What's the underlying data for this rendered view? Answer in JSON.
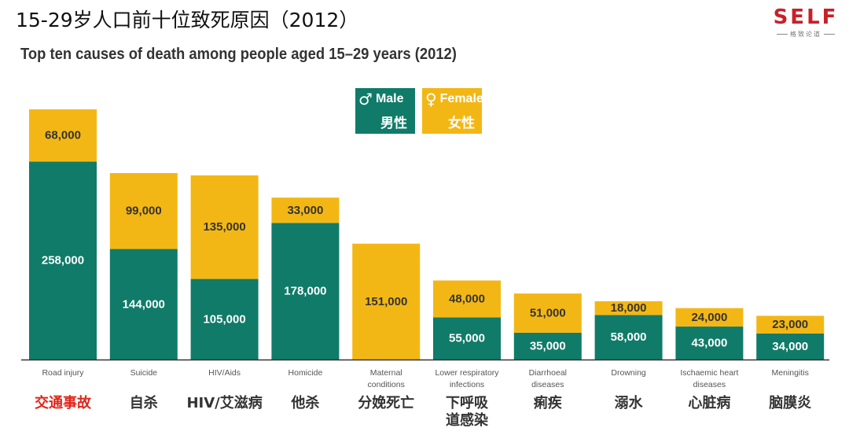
{
  "header": {
    "title_cn": "15-29岁人口前十位致死原因（2012）",
    "title_en": "Top ten causes of death among people aged 15–29 years (2012)"
  },
  "logo": {
    "text": "SELF",
    "tagline": "格致论道"
  },
  "legend": {
    "male_symbol": "♂",
    "male_en": "Male",
    "male_cn": "男性",
    "female_symbol": "♀",
    "female_en": "Female",
    "female_cn": "女性"
  },
  "colors": {
    "male": "#107b69",
    "female": "#f3b715",
    "highlight": "#e1251b"
  },
  "chart_data": {
    "type": "bar",
    "stacked": true,
    "title": "Top ten causes of death among people aged 15–29 years (2012)",
    "categories": [
      "Road injury",
      "Suicide",
      "HIV/Aids",
      "Homicide",
      "Maternal conditions",
      "Lower respiratory infections",
      "Diarrhoeal diseases",
      "Drowning",
      "Ischaemic heart diseases",
      "Meningitis"
    ],
    "categories_en_lines": [
      [
        "Road injury"
      ],
      [
        "Suicide"
      ],
      [
        "HIV/Aids"
      ],
      [
        "Homicide"
      ],
      [
        "Maternal",
        "conditions"
      ],
      [
        "Lower respiratory",
        "infections"
      ],
      [
        "Diarrhoeal",
        "diseases"
      ],
      [
        "Drowning"
      ],
      [
        "Ischaemic heart",
        "diseases"
      ],
      [
        "Meningitis"
      ]
    ],
    "categories_cn_lines": [
      [
        "交通事故"
      ],
      [
        "自杀"
      ],
      [
        "HIV/艾滋病"
      ],
      [
        "他杀"
      ],
      [
        "分娩死亡"
      ],
      [
        "下呼吸",
        "道感染"
      ],
      [
        "痢疾"
      ],
      [
        "溺水"
      ],
      [
        "心脏病"
      ],
      [
        "脑膜炎"
      ]
    ],
    "highlight_index": 0,
    "series": [
      {
        "name": "Male",
        "values": [
          258000,
          144000,
          105000,
          178000,
          0,
          55000,
          35000,
          58000,
          43000,
          34000
        ],
        "labels": [
          "258,000",
          "144,000",
          "105,000",
          "178,000",
          "",
          "55,000",
          "35,000",
          "58,000",
          "43,000",
          "34,000"
        ]
      },
      {
        "name": "Female",
        "values": [
          68000,
          99000,
          135000,
          33000,
          151000,
          48000,
          51000,
          18000,
          24000,
          23000
        ],
        "labels": [
          "68,000",
          "99,000",
          "135,000",
          "33,000",
          "151,000",
          "48,000",
          "51,000",
          "18,000",
          "24,000",
          "23,000"
        ]
      }
    ],
    "ylim": [
      0,
      326000
    ],
    "grid": false,
    "legend_position": "top-center"
  }
}
